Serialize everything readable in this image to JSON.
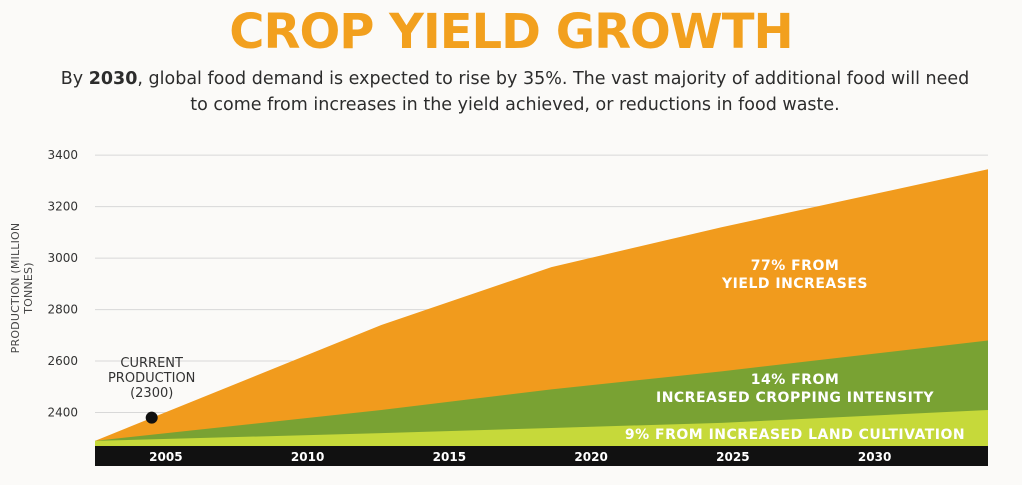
{
  "header": {
    "title": "CROP YIELD GROWTH",
    "subtitle_prefix": "By ",
    "subtitle_bold": "2030",
    "subtitle_rest": ", global food demand is expected to rise by 35%. The vast majority of additional food will need to come from increases in the yield achieved, or reductions in food waste."
  },
  "colors": {
    "title": "#f2a01e",
    "yield": "#f19b1d",
    "intensity": "#79a233",
    "land": "#c6d93a",
    "axis_bar": "#111111"
  },
  "chart_data": {
    "type": "area",
    "ylabel": "PRODUCTION (MILLION TONNES)",
    "ylim": [
      2270,
      3420
    ],
    "yticks": [
      2400,
      2600,
      2800,
      3000,
      3200,
      3400
    ],
    "xlim": [
      2002.5,
      2034
    ],
    "xticks": [
      2005,
      2010,
      2015,
      2020,
      2025,
      2030
    ],
    "grid": true,
    "x": [
      2002.5,
      2012.6,
      2018.6,
      2024.6,
      2034
    ],
    "series": [
      {
        "name": "LAND CULTIVATION",
        "values": [
          2290,
          2320,
          2340,
          2360,
          2410
        ]
      },
      {
        "name": "CROPPING INTENSITY",
        "values": [
          2290,
          2410,
          2490,
          2560,
          2680
        ]
      },
      {
        "name": "YIELD",
        "values": [
          2290,
          2740,
          2965,
          3120,
          3345
        ]
      }
    ],
    "band_labels": [
      {
        "line1": "77% FROM",
        "line2": "YIELD INCREASES"
      },
      {
        "line1": "14% FROM",
        "line2": "INCREASED CROPPING INTENSITY"
      },
      {
        "line1": "9% FROM INCREASED LAND CULTIVATION"
      }
    ],
    "annotation": {
      "lines": [
        "CURRENT",
        "PRODUCTION",
        "(2300)"
      ],
      "x": 2004.5,
      "y": 2380
    }
  }
}
